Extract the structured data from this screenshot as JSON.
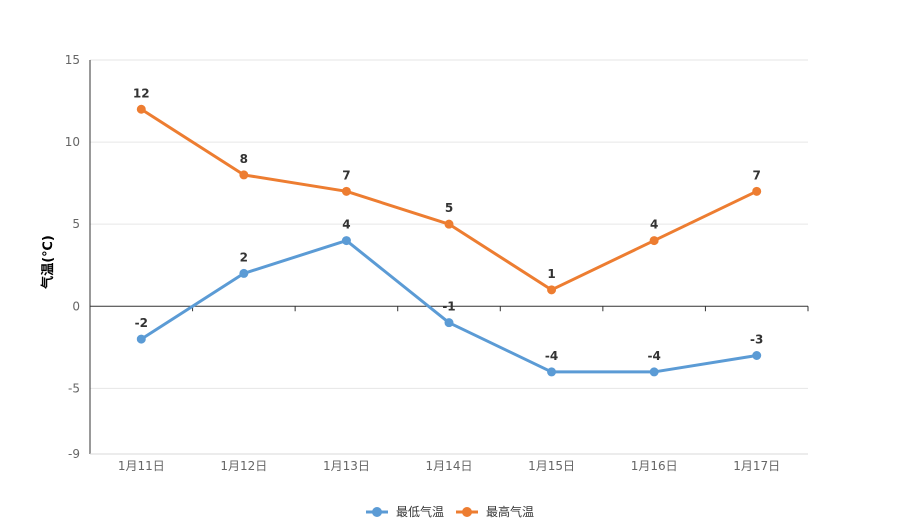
{
  "chart_data": {
    "type": "line",
    "categories": [
      "1月11日",
      "1月12日",
      "1月13日",
      "1月14日",
      "1月15日",
      "1月16日",
      "1月17日"
    ],
    "series": [
      {
        "name": "最低气温",
        "values": [
          -2,
          2,
          4,
          -1,
          -4,
          -4,
          -3
        ],
        "color": "#5B9BD5"
      },
      {
        "name": "最高气温",
        "values": [
          12,
          8,
          7,
          5,
          1,
          4,
          7
        ],
        "color": "#ED7D31"
      }
    ],
    "ylabel": "气温(℃)",
    "ylim": [
      -9,
      15
    ],
    "yticks": [
      -9,
      -5,
      0,
      5,
      10,
      15
    ],
    "grid": true,
    "legend_position": "bottom-center"
  }
}
